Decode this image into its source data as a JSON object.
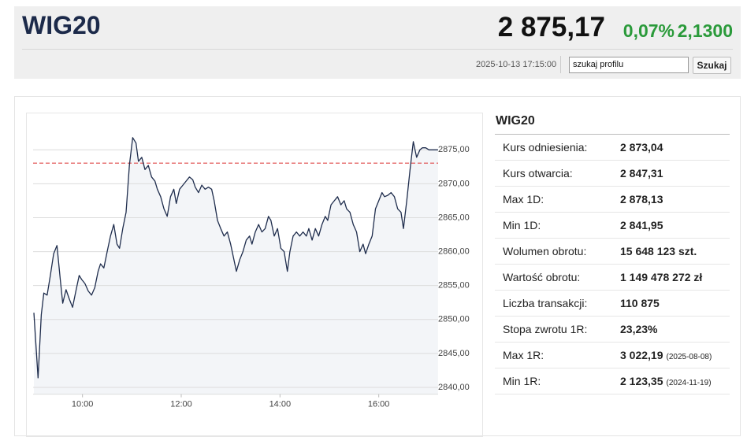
{
  "header": {
    "title": "WIG20",
    "price": "2 875,17",
    "change_pct": "0,07%",
    "change": "2,1300",
    "datetime": "2025-10-13 17:15:00",
    "search_placeholder": "szukaj profilu",
    "search_button": "Szukaj"
  },
  "chart_data": {
    "type": "line",
    "color": "#1f2d4d",
    "reference": 2873.04,
    "reference_color": "#e04848",
    "x": [
      541,
      546,
      550,
      553,
      557,
      561,
      565,
      569,
      573,
      576,
      580,
      584,
      588,
      592,
      596,
      599,
      603,
      607,
      611,
      615,
      619,
      622,
      626,
      630,
      634,
      638,
      642,
      645,
      649,
      653,
      657,
      661,
      665,
      668,
      672,
      676,
      680,
      684,
      688,
      691,
      695,
      699,
      703,
      707,
      711,
      714,
      718,
      722,
      726,
      730,
      734,
      737,
      741,
      745,
      749,
      753,
      757,
      760,
      764,
      768,
      772,
      776,
      780,
      783,
      787,
      791,
      795,
      799,
      803,
      806,
      810,
      814,
      818,
      822,
      826,
      829,
      833,
      837,
      841,
      845,
      849,
      852,
      856,
      860,
      864,
      868,
      872,
      875,
      879,
      883,
      887,
      891,
      895,
      898,
      902,
      906,
      910,
      914,
      918,
      921,
      925,
      929,
      933,
      937,
      941,
      944,
      948,
      952,
      956,
      960,
      964,
      967,
      971,
      975,
      979,
      983,
      987,
      990,
      994,
      998,
      1002,
      1006,
      1010,
      1013,
      1017,
      1021,
      1032
    ],
    "values": [
      2851.0,
      2841.4,
      2850.7,
      2853.9,
      2853.6,
      2856.5,
      2859.7,
      2860.9,
      2855.9,
      2852.4,
      2854.4,
      2853.0,
      2851.8,
      2854.2,
      2856.5,
      2855.9,
      2855.3,
      2854.2,
      2853.6,
      2854.7,
      2857.1,
      2858.2,
      2857.6,
      2860.0,
      2862.3,
      2864.0,
      2861.1,
      2860.5,
      2863.4,
      2865.8,
      2872.7,
      2876.8,
      2876.0,
      2873.3,
      2873.9,
      2872.1,
      2872.7,
      2871.0,
      2870.4,
      2869.2,
      2868.1,
      2866.3,
      2865.2,
      2868.1,
      2869.2,
      2867.1,
      2869.2,
      2869.8,
      2870.4,
      2871.0,
      2870.6,
      2869.5,
      2868.7,
      2869.8,
      2869.2,
      2869.5,
      2869.2,
      2867.5,
      2864.6,
      2863.4,
      2862.3,
      2862.9,
      2861.1,
      2859.4,
      2857.1,
      2858.8,
      2860.0,
      2861.7,
      2862.3,
      2861.1,
      2862.9,
      2864.0,
      2862.9,
      2863.4,
      2865.2,
      2864.6,
      2862.3,
      2863.4,
      2860.5,
      2860.0,
      2857.1,
      2860.0,
      2862.3,
      2862.9,
      2862.3,
      2862.9,
      2862.3,
      2863.4,
      2861.7,
      2863.4,
      2862.3,
      2864.0,
      2865.2,
      2864.6,
      2866.9,
      2867.5,
      2868.1,
      2866.9,
      2867.5,
      2866.3,
      2865.8,
      2864.0,
      2862.9,
      2860.0,
      2861.1,
      2859.7,
      2861.1,
      2862.3,
      2866.3,
      2867.5,
      2868.7,
      2868.1,
      2868.3,
      2868.7,
      2868.1,
      2866.3,
      2865.8,
      2863.4,
      2867.5,
      2872.1,
      2876.2,
      2873.9,
      2875.0,
      2875.3,
      2875.3,
      2875.0,
      2875.0
    ],
    "xlim": [
      540,
      1035
    ],
    "xticks": [
      {
        "value": 600,
        "label": "10:00"
      },
      {
        "value": 720,
        "label": "12:00"
      },
      {
        "value": 840,
        "label": "14:00"
      },
      {
        "value": 960,
        "label": "16:00"
      }
    ],
    "ylim": [
      2839,
      2879.5
    ],
    "yticks": [
      {
        "value": 2840,
        "label": "2840,00"
      },
      {
        "value": 2845,
        "label": "2845,00"
      },
      {
        "value": 2850,
        "label": "2850,00"
      },
      {
        "value": 2855,
        "label": "2855,00"
      },
      {
        "value": 2860,
        "label": "2860,00"
      },
      {
        "value": 2865,
        "label": "2865,00"
      },
      {
        "value": 2870,
        "label": "2870,00"
      },
      {
        "value": 2875,
        "label": "2875,00"
      }
    ],
    "grid": true
  },
  "table": {
    "title": "WIG20",
    "rows": [
      {
        "label": "Kurs odniesienia:",
        "value": "2 873,04"
      },
      {
        "label": "Kurs otwarcia:",
        "value": "2 847,31"
      },
      {
        "label": "Max 1D:",
        "value": "2 878,13"
      },
      {
        "label": "Min 1D:",
        "value": "2 841,95"
      },
      {
        "label": "Wolumen obrotu:",
        "value": "15 648 123 szt."
      },
      {
        "label": "Wartość obrotu:",
        "value": "1 149 478 272 zł"
      },
      {
        "label": "Liczba transakcji:",
        "value": "110 875"
      },
      {
        "label": "Stopa zwrotu 1R:",
        "value": "23,23%"
      },
      {
        "label": "Max 1R:",
        "value": "3 022,19",
        "note": "(2025-08-08)"
      },
      {
        "label": "Min 1R:",
        "value": "2 123,35",
        "note": "(2024-11-19)"
      }
    ]
  }
}
